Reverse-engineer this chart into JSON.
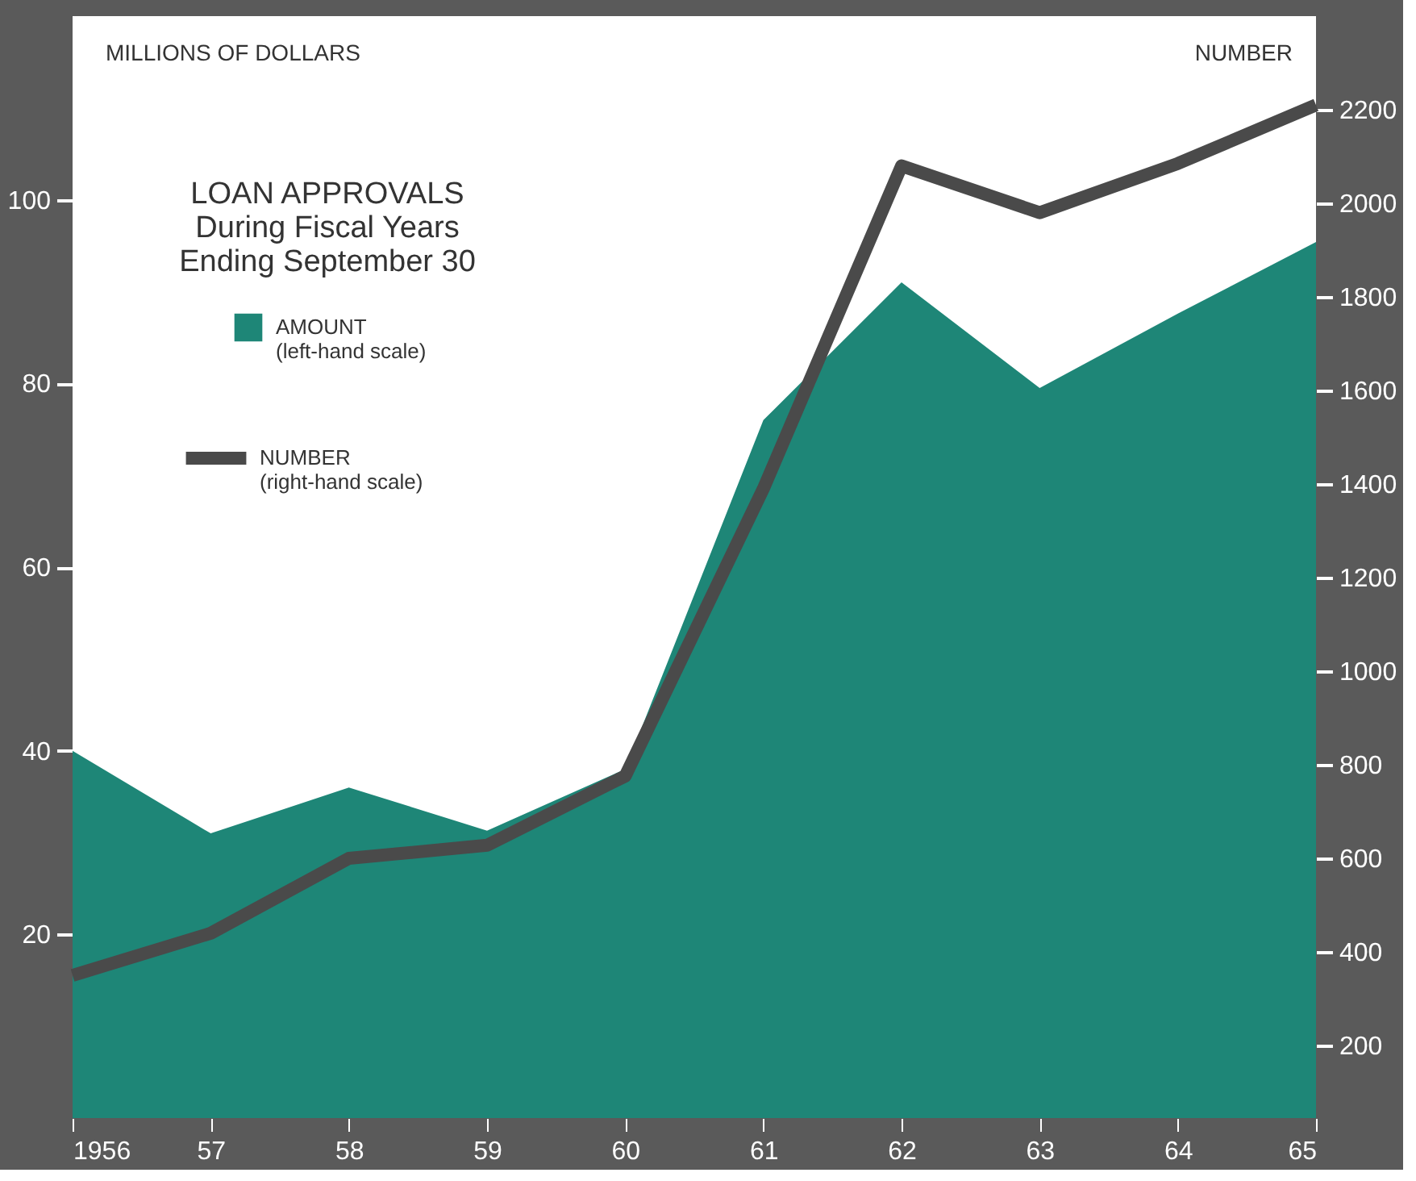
{
  "chart_data": {
    "type": "area",
    "categories": [
      "1956",
      "57",
      "58",
      "59",
      "60",
      "61",
      "62",
      "63",
      "64",
      "65"
    ],
    "ylabel": "MILLIONS OF DOLLARS",
    "y2label": "NUMBER",
    "legend_title": "LOAN APPROVALS\nDuring Fiscal Years\nEnding September 30",
    "legend": "top left",
    "series": [
      {
        "name": "AMOUNT\n(left-hand scale)",
        "color": "#1e8677",
        "values": [
          40,
          31,
          36,
          31.3,
          38,
          76,
          91,
          79.5,
          87.6,
          95.4
        ]
      },
      {
        "name": "NUMBER\n(right-hand scale)",
        "type": "line",
        "axis": "y2",
        "color": "#4a4a4a",
        "values": [
          350,
          440,
          600,
          628,
          776,
          1390,
          2080,
          1980,
          2085,
          2210
        ]
      }
    ],
    "ylim": [
      0,
      120
    ],
    "yticks": [
      20,
      40,
      60,
      80,
      100
    ],
    "y2lim": [
      45,
      2400
    ],
    "y2ticks": [
      200,
      400,
      600,
      800,
      1000,
      1200,
      1400,
      1600,
      1800,
      2000,
      2200
    ]
  }
}
